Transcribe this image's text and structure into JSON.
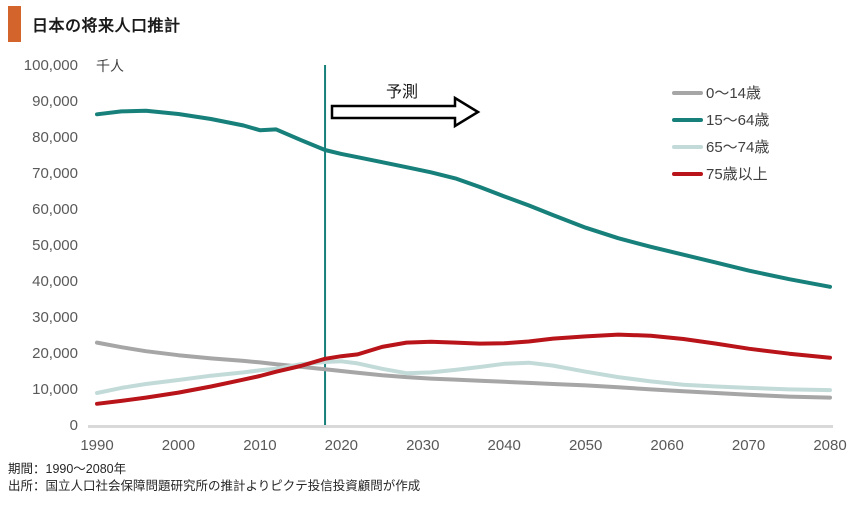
{
  "header": {
    "title": "日本の将来人口推計",
    "accent_color": "#d2642c"
  },
  "chart_data": {
    "type": "line",
    "title": "日本の将来人口推計",
    "unit_label": "千人",
    "xlabel": "",
    "ylabel": "千人",
    "xlim": [
      1990,
      2080
    ],
    "ylim": [
      0,
      100000
    ],
    "x_ticks": [
      1990,
      2000,
      2010,
      2020,
      2030,
      2040,
      2050,
      2060,
      2070,
      2080
    ],
    "y_ticks": [
      0,
      10000,
      20000,
      30000,
      40000,
      50000,
      60000,
      70000,
      80000,
      90000,
      100000
    ],
    "grid": "none",
    "legend_position": "top-right",
    "axis_line_color": "#d9d9d9",
    "tick_text_color": "#595959",
    "forecast": {
      "label": "予測",
      "start_year": 2018
    },
    "x": [
      1990,
      1993,
      1996,
      2000,
      2004,
      2008,
      2010,
      2012,
      2015,
      2018,
      2020,
      2022,
      2025,
      2028,
      2031,
      2034,
      2037,
      2040,
      2043,
      2046,
      2050,
      2054,
      2058,
      2062,
      2066,
      2070,
      2075,
      2080
    ],
    "series": [
      {
        "name": "0〜14歳",
        "color": "#a6a6a6",
        "values": [
          22900,
          21600,
          20500,
          19400,
          18500,
          17800,
          17400,
          16900,
          16200,
          15500,
          15000,
          14500,
          13800,
          13300,
          12900,
          12600,
          12300,
          12000,
          11700,
          11400,
          11000,
          10500,
          9900,
          9400,
          8900,
          8400,
          7900,
          7600
        ]
      },
      {
        "name": "15〜64歳",
        "color": "#17807a",
        "values": [
          86300,
          87100,
          87300,
          86400,
          85000,
          83200,
          81900,
          82100,
          79200,
          76400,
          75300,
          74400,
          73000,
          71600,
          70200,
          68500,
          66100,
          63500,
          61000,
          58300,
          54800,
          51900,
          49500,
          47300,
          45100,
          42900,
          40500,
          38400
        ]
      },
      {
        "name": "65〜74歳",
        "color": "#c2dbd9",
        "values": [
          8900,
          10300,
          11400,
          12500,
          13700,
          14600,
          15200,
          15600,
          16900,
          17500,
          17700,
          17100,
          15600,
          14400,
          14600,
          15300,
          16100,
          17000,
          17300,
          16500,
          14800,
          13300,
          12100,
          11200,
          10700,
          10300,
          9900,
          9700
        ]
      },
      {
        "name": "75歳以上",
        "color": "#b81419",
        "values": [
          5900,
          6700,
          7600,
          9000,
          10700,
          12600,
          13600,
          14800,
          16400,
          18400,
          19100,
          19600,
          21700,
          22900,
          23100,
          22900,
          22600,
          22700,
          23200,
          24000,
          24600,
          25100,
          24800,
          23900,
          22600,
          21200,
          19800,
          18700
        ]
      }
    ]
  },
  "footer": {
    "period": "期間：1990〜2080年",
    "source": "出所：国立人口社会保障問題研究所の推計よりピクテ投信投資顧問が作成"
  }
}
